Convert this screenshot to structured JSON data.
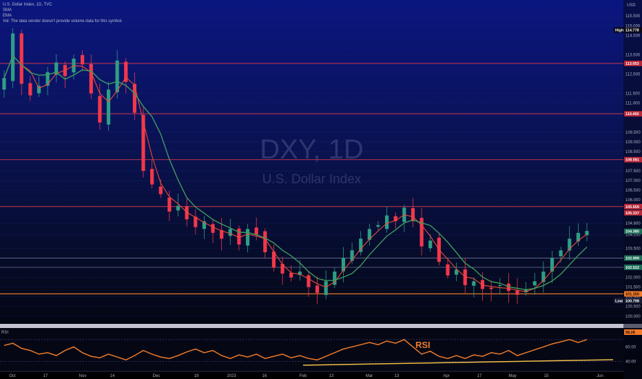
{
  "legend": {
    "symbol": "U.S. Dollar Index, 1D, TVC",
    "indicator1": "SMA",
    "indicator2": "EMA",
    "volume_note": "Vol: The data vendor doesn't provide volume data for this symbol."
  },
  "watermark": {
    "ticker": "DXY, 1D",
    "name": "U.S. Dollar Index"
  },
  "rsi_annotation": "RSI",
  "rsi_pane_label": "RSI",
  "colors": {
    "up": "#2e9e86",
    "down": "#f2374b",
    "sma": "#ef4b3a",
    "ema": "#3f9c5f",
    "rsi": "#f07a2a",
    "hline_orange": "#f07a2a",
    "hline_red": "#e8394a"
  },
  "chart_data": {
    "type": "candlestick",
    "title": "U.S. Dollar Index, 1D, TVC",
    "y_axis": {
      "unit": "USD",
      "ticks": [
        "115.500",
        "115.000",
        "114.500",
        "113.500",
        "113.000",
        "112.500",
        "111.500",
        "111.000",
        "110.500",
        "109.500",
        "109.000",
        "108.500",
        "107.500",
        "107.000",
        "106.500",
        "106.000",
        "104.800",
        "104.200",
        "103.500",
        "103.000",
        "102.000",
        "101.500",
        "101.000",
        "100.500",
        "100.000",
        "99.500"
      ],
      "range": [
        99.6,
        115.9
      ]
    },
    "x_axis": {
      "tick_labels": [
        "Oct",
        "17",
        "Nov",
        "14",
        "Dec",
        "19",
        "2023",
        "16",
        "Feb",
        "13",
        "Mar",
        "13",
        "Apr",
        "17",
        "May",
        "15",
        "Jun"
      ]
    },
    "price_labels": [
      {
        "text": "High",
        "value": "",
        "kind": "high"
      },
      {
        "text": "114.778",
        "value": 114.778,
        "kind": "high"
      },
      {
        "text": "113.053",
        "value": 113.053,
        "kind": "red"
      },
      {
        "text": "110.450",
        "value": 110.45,
        "kind": "red"
      },
      {
        "text": "108.081",
        "value": 108.081,
        "kind": "red"
      },
      {
        "text": "105.659",
        "value": 105.659,
        "kind": "red"
      },
      {
        "text": "105.337",
        "value": 105.337,
        "kind": "red"
      },
      {
        "text": "104.380",
        "value": 104.38,
        "kind": "green"
      },
      {
        "text": "102.999",
        "value": 102.999,
        "kind": "green"
      },
      {
        "text": "102.522",
        "value": 102.522,
        "kind": "green"
      },
      {
        "text": "101.150",
        "value": 101.15,
        "kind": "orange"
      },
      {
        "text": "Low",
        "value": "",
        "kind": "low"
      },
      {
        "text": "100.798",
        "value": 100.798,
        "kind": "low"
      }
    ],
    "horizontal_lines": [
      {
        "value": 113.053,
        "color": "#e8394a"
      },
      {
        "value": 110.45,
        "color": "#e8394a"
      },
      {
        "value": 108.081,
        "color": "#e8394a"
      },
      {
        "value": 105.659,
        "color": "#e8394a"
      },
      {
        "value": 102.999,
        "color": "#6a6f9a"
      },
      {
        "value": 102.522,
        "color": "#6a6f9a"
      },
      {
        "value": 101.15,
        "color": "#f07a2a"
      }
    ],
    "series": [
      {
        "kind": "candles",
        "close_path": [
          112.3,
          114.6,
          112.0,
          111.4,
          111.9,
          112.6,
          113.1,
          112.4,
          113.3,
          113.0,
          111.5,
          110.0,
          111.7,
          113.2,
          112.1,
          110.5,
          107.5,
          106.8,
          106.3,
          105.4,
          105.7,
          105.0,
          104.6,
          104.9,
          104.3,
          104.0,
          104.5,
          103.7,
          104.5,
          104.2,
          103.3,
          102.5,
          102.2,
          102.0,
          102.3,
          101.5,
          101.2,
          101.8,
          102.3,
          103.0,
          103.4,
          104.0,
          104.5,
          104.7,
          105.2,
          104.9,
          105.6,
          104.9,
          103.6,
          103.9,
          102.8,
          102.1,
          102.4,
          101.6,
          101.8,
          101.4,
          101.4,
          101.6,
          101.3,
          101.1,
          101.4,
          101.8,
          102.3,
          103.0,
          103.4,
          104.0,
          104.3,
          104.4
        ]
      },
      {
        "name": "SMA",
        "kind": "line"
      },
      {
        "name": "EMA",
        "kind": "line"
      }
    ],
    "rsi": {
      "pane_label": "RSI",
      "y_ticks": [
        "80.00",
        "60.00",
        "40.00"
      ],
      "current_label": "58.28",
      "series": [
        62,
        65,
        58,
        55,
        50,
        52,
        48,
        55,
        60,
        52,
        47,
        45,
        50,
        46,
        42,
        48,
        55,
        50,
        46,
        44,
        48,
        53,
        57,
        52,
        55,
        48,
        44,
        49,
        46,
        50,
        44,
        47,
        50,
        45,
        48,
        44,
        42,
        47,
        52,
        57,
        60,
        63,
        66,
        63,
        68,
        65,
        70,
        60,
        50,
        54,
        47,
        44,
        48,
        44,
        49,
        47,
        52,
        50,
        55,
        48,
        52,
        56,
        60,
        64,
        67,
        70,
        66,
        70
      ]
    }
  }
}
